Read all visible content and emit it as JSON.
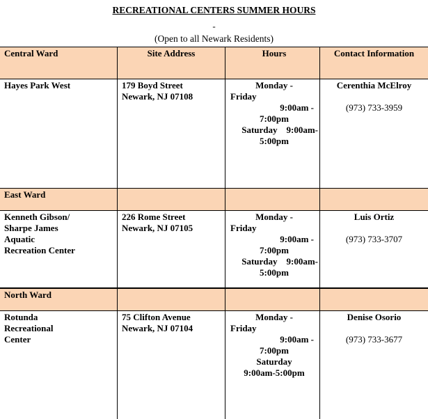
{
  "title": "RECREATIONAL CENTERS SUMMER HOURS",
  "dash": "-",
  "subtitle": "(Open to all Newark Residents)",
  "columns": [
    "Central Ward",
    "Site Address",
    "Hours",
    "Contact Information"
  ],
  "wards": [
    {
      "name": "Central Ward",
      "site": {
        "name": "Hayes Park West",
        "address": [
          "179 Boyd Street",
          "Newark, NJ 07108"
        ],
        "hours": [
          "Monday -",
          "Friday",
          "9:00am -",
          "7:00pm",
          "Saturday    9:00am-",
          "5:00pm"
        ],
        "contact": "Cerenthia McElroy",
        "phone": "(973) 733-3959"
      }
    },
    {
      "name": "East Ward",
      "site": {
        "name": [
          "Kenneth Gibson/",
          "Sharpe James",
          "Aquatic",
          "Recreation Center"
        ],
        "address": [
          "226 Rome Street",
          "Newark, NJ 07105"
        ],
        "hours": [
          "Monday -",
          "Friday",
          "9:00am -",
          "7:00pm",
          "Saturday    9:00am-",
          "5:00pm"
        ],
        "contact": "Luis Ortiz",
        "phone": "(973) 733-3707"
      }
    },
    {
      "name": "North Ward",
      "site": {
        "name": [
          "Rotunda",
          "Recreational",
          "Center"
        ],
        "address": [
          "75 Clifton Avenue",
          "Newark, NJ 07104"
        ],
        "hours": [
          "Monday -",
          "Friday",
          "9:00am -",
          "7:00pm",
          "Saturday",
          "9:00am-5:00pm"
        ],
        "contact": "Denise Osorio",
        "phone": "(973) 733-3677"
      }
    }
  ],
  "colors": {
    "header_fill": "#fbd5b5"
  }
}
